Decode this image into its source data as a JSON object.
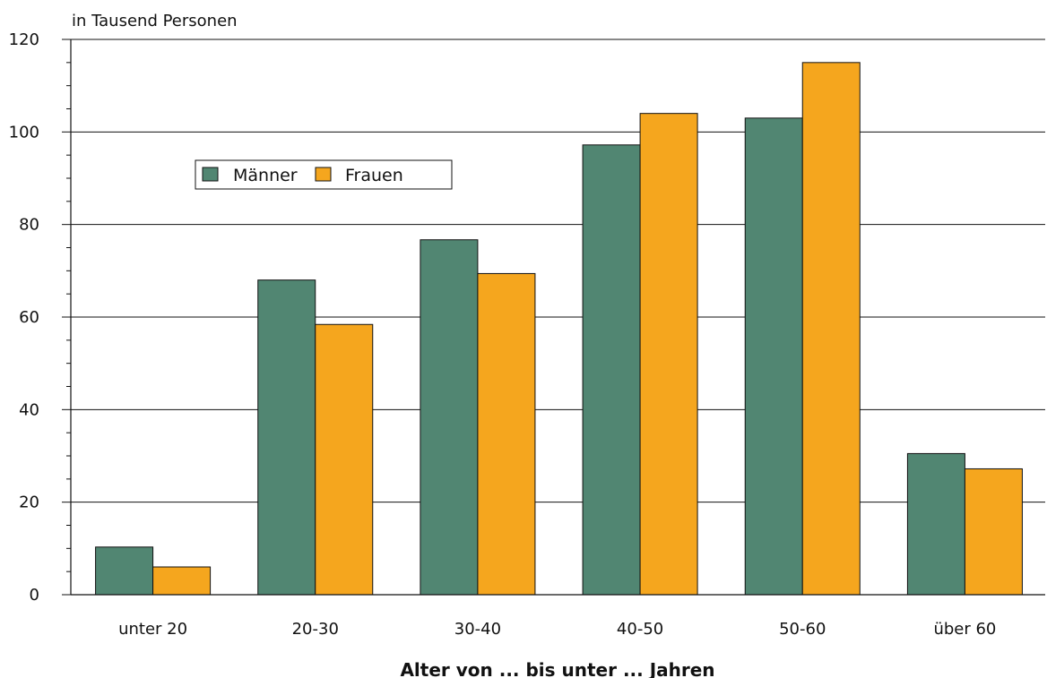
{
  "chart_data": {
    "type": "bar",
    "title": "",
    "unit_label": "in Tausend Personen",
    "xlabel": "Alter von ... bis unter ... Jahren",
    "ylabel": "",
    "categories": [
      "unter 20",
      "20-30",
      "30-40",
      "40-50",
      "50-60",
      "über 60"
    ],
    "series": [
      {
        "name": "Männer",
        "color": "#518672",
        "values": [
          10.3,
          68.0,
          76.7,
          97.2,
          103.0,
          30.5
        ]
      },
      {
        "name": "Frauen",
        "color": "#f5a61e",
        "values": [
          6.0,
          58.4,
          69.4,
          104.0,
          115.0,
          27.2
        ]
      }
    ],
    "ylim": [
      0,
      120
    ],
    "yticks": [
      "0",
      "20",
      "40",
      "60",
      "80",
      "100",
      "120"
    ],
    "grid": true,
    "legend_position": "top-left"
  }
}
